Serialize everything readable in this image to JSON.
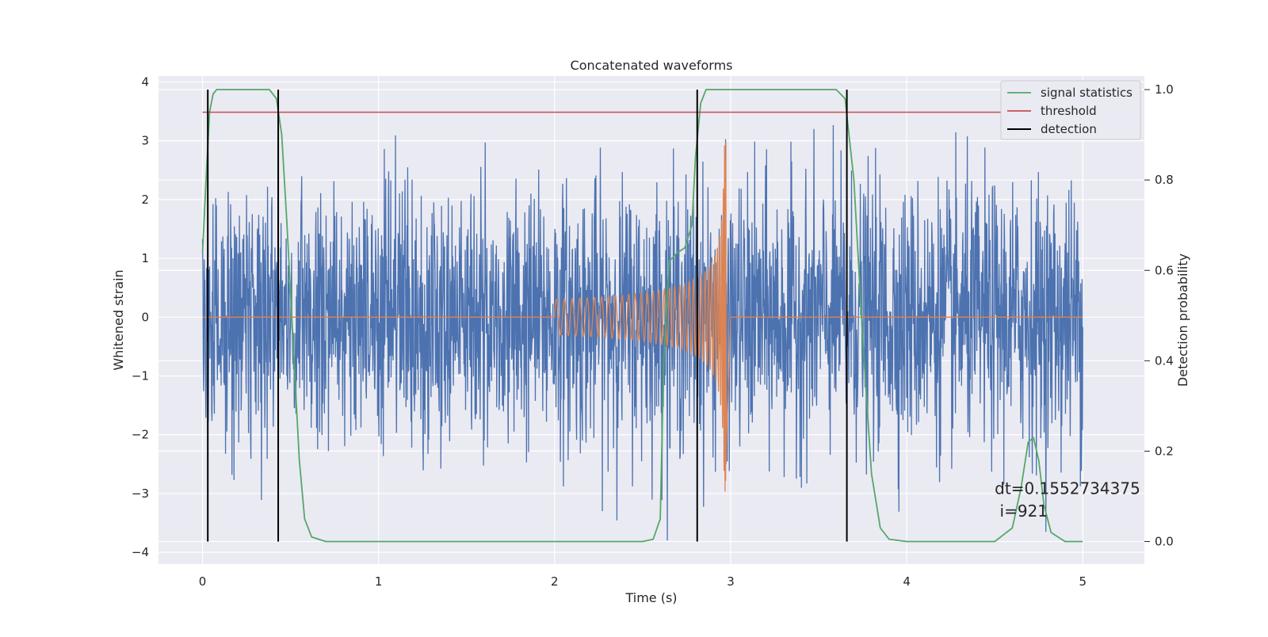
{
  "chart_data": {
    "type": "line",
    "title": "Concatenated waveforms",
    "xlabel": "Time (s)",
    "ylabel": "Whitened strain",
    "ylabel_right": "Detection probability",
    "xlim": [
      -0.25,
      5.35
    ],
    "ylim": [
      -4.2,
      4.1
    ],
    "ylim_right": [
      -0.05,
      1.03
    ],
    "x_ticks": [
      "0",
      "1",
      "2",
      "3",
      "4",
      "5"
    ],
    "y_ticks": [
      "4",
      "3",
      "2",
      "1",
      "0",
      "−1",
      "−2",
      "−3",
      "−4"
    ],
    "y_right_ticks": [
      "1.0",
      "0.8",
      "0.6",
      "0.4",
      "0.2",
      "0.0"
    ],
    "grid": true,
    "legend_position": "top-right",
    "colors": {
      "background": "#eaeaf2",
      "strain": "#4c72b0",
      "injected": "#dd8452",
      "signal_statistics": "#55a868",
      "threshold": "#c44e52",
      "detection": "#000000",
      "grid": "#ffffff"
    },
    "series": [
      {
        "name": "signal statistics",
        "axis": "right",
        "x": [
          0.0,
          0.02,
          0.04,
          0.06,
          0.08,
          0.1,
          0.15,
          0.3,
          0.38,
          0.42,
          0.45,
          0.48,
          0.52,
          0.55,
          0.58,
          0.62,
          0.7,
          1.0,
          1.5,
          2.0,
          2.4,
          2.5,
          2.56,
          2.6,
          2.62,
          2.65,
          2.7,
          2.74,
          2.78,
          2.8,
          2.83,
          2.86,
          2.9,
          3.0,
          3.4,
          3.6,
          3.65,
          3.7,
          3.75,
          3.8,
          3.85,
          3.9,
          4.0,
          4.5,
          4.6,
          4.65,
          4.69,
          4.72,
          4.75,
          4.78,
          4.82,
          4.9,
          5.0
        ],
        "y": [
          0.64,
          0.8,
          0.95,
          0.99,
          1.0,
          1.0,
          1.0,
          1.0,
          1.0,
          0.98,
          0.9,
          0.7,
          0.4,
          0.18,
          0.05,
          0.01,
          0.0,
          0.0,
          0.0,
          0.0,
          0.0,
          0.0,
          0.005,
          0.05,
          0.4,
          0.62,
          0.64,
          0.65,
          0.7,
          0.85,
          0.97,
          1.0,
          1.0,
          1.0,
          1.0,
          1.0,
          0.98,
          0.8,
          0.45,
          0.15,
          0.03,
          0.005,
          0.0,
          0.0,
          0.03,
          0.12,
          0.22,
          0.23,
          0.18,
          0.08,
          0.02,
          0.0,
          0.0
        ]
      },
      {
        "name": "threshold",
        "axis": "right",
        "x": [
          0.0,
          5.0
        ],
        "y": [
          0.95,
          0.95
        ]
      },
      {
        "name": "detection",
        "axis": "right",
        "x": [
          0.03,
          0.43,
          2.81,
          3.66
        ],
        "y_range": [
          0.0,
          1.0
        ]
      },
      {
        "axis": "left",
        "x_range": [
          0.0,
          5.0
        ],
        "amplitude": 1.1
      },
      {
        "axis": "left",
        "x_range": [
          2.0,
          3.0
        ],
        "amplitude_start": 0.3,
        "amplitude_peak": 3.0
      }
    ],
    "annotation": {
      "dt_text": "dt=0.1552734375",
      "i_text": " i=921",
      "x": 4.5
    }
  },
  "legend": {
    "items": [
      "signal statistics",
      "threshold",
      "detection"
    ]
  }
}
